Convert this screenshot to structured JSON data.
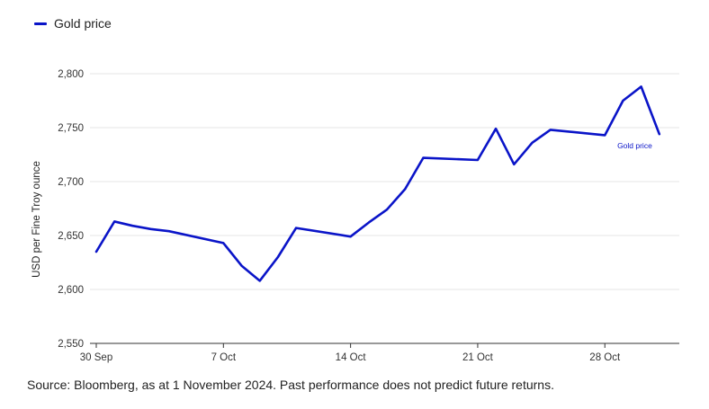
{
  "legend": {
    "label": "Gold price",
    "color": "#0a14c8"
  },
  "source": "Source: Bloomberg, as at 1 November 2024. Past performance does not predict future returns.",
  "chart_data": {
    "type": "line",
    "title": "",
    "xlabel": "",
    "ylabel": "USD per Fine Troy ounce",
    "ylim": [
      2550,
      2800
    ],
    "yticks": [
      2550,
      2600,
      2650,
      2700,
      2750,
      2800
    ],
    "ytick_labels": [
      "2,550",
      "2,600",
      "2,650",
      "2,700",
      "2,750",
      "2,800"
    ],
    "xlim": [
      "2024-09-30",
      "2024-11-01"
    ],
    "xticks": [
      "2024-09-30",
      "2024-10-07",
      "2024-10-14",
      "2024-10-21",
      "2024-10-28"
    ],
    "xtick_labels": [
      "30 Sep",
      "7 Oct",
      "14 Oct",
      "21 Oct",
      "28 Oct"
    ],
    "grid": "horizontal",
    "legend_position": "top-left",
    "series": [
      {
        "name": "Gold price",
        "color": "#0a14c8",
        "end_label": "Gold price",
        "points": [
          {
            "x": "2024-09-30",
            "y": 2635
          },
          {
            "x": "2024-10-01",
            "y": 2663
          },
          {
            "x": "2024-10-02",
            "y": 2659
          },
          {
            "x": "2024-10-03",
            "y": 2656
          },
          {
            "x": "2024-10-04",
            "y": 2654
          },
          {
            "x": "2024-10-07",
            "y": 2643
          },
          {
            "x": "2024-10-08",
            "y": 2622
          },
          {
            "x": "2024-10-09",
            "y": 2608
          },
          {
            "x": "2024-10-10",
            "y": 2630
          },
          {
            "x": "2024-10-11",
            "y": 2657
          },
          {
            "x": "2024-10-14",
            "y": 2649
          },
          {
            "x": "2024-10-15",
            "y": 2662
          },
          {
            "x": "2024-10-16",
            "y": 2674
          },
          {
            "x": "2024-10-17",
            "y": 2693
          },
          {
            "x": "2024-10-18",
            "y": 2722
          },
          {
            "x": "2024-10-21",
            "y": 2720
          },
          {
            "x": "2024-10-22",
            "y": 2749
          },
          {
            "x": "2024-10-23",
            "y": 2716
          },
          {
            "x": "2024-10-24",
            "y": 2736
          },
          {
            "x": "2024-10-25",
            "y": 2748
          },
          {
            "x": "2024-10-28",
            "y": 2743
          },
          {
            "x": "2024-10-29",
            "y": 2775
          },
          {
            "x": "2024-10-30",
            "y": 2788
          },
          {
            "x": "2024-10-31",
            "y": 2744
          }
        ]
      }
    ]
  }
}
